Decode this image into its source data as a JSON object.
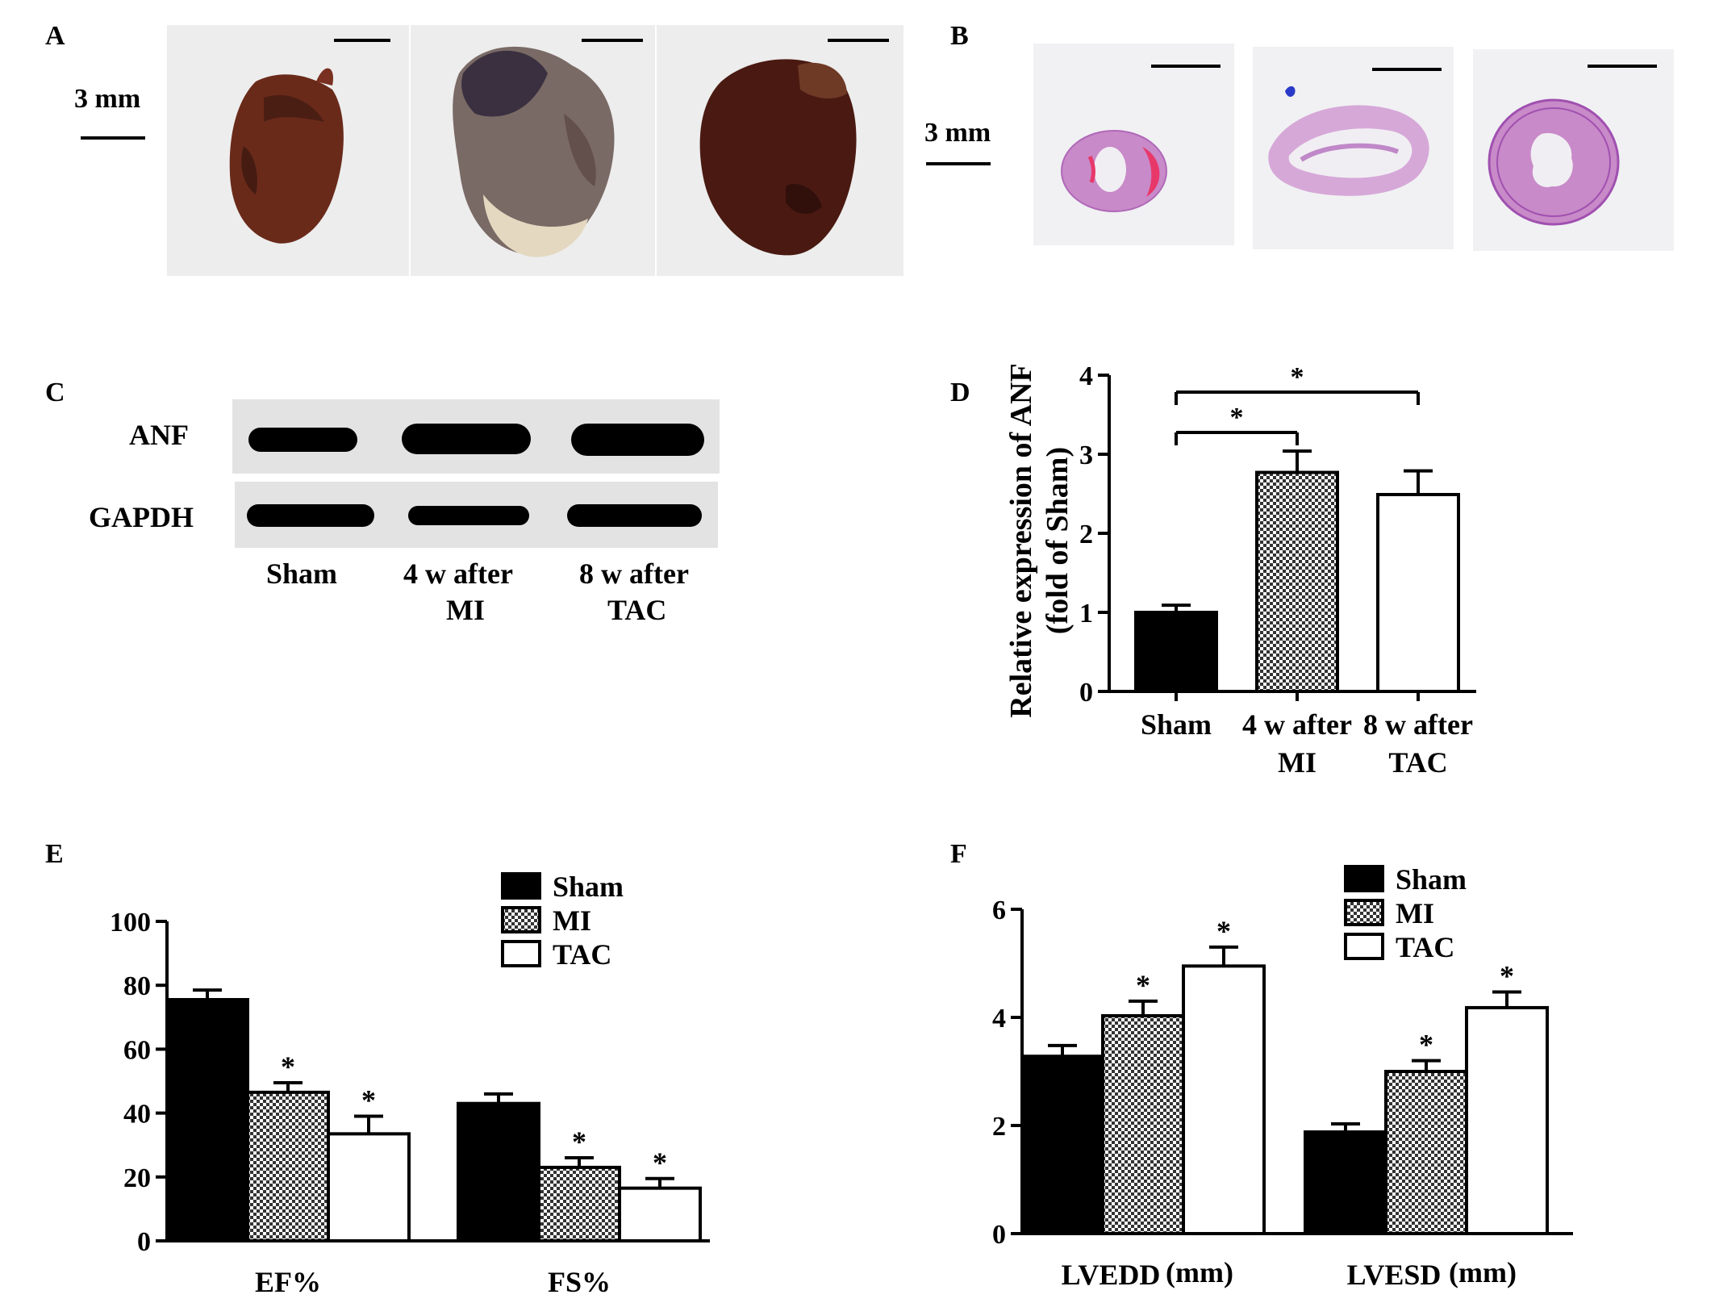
{
  "panel_a": {
    "label": "A",
    "scale_label": "3 mm",
    "colors": {
      "background": "#eeeeee",
      "heart_sham": "#6a2a1a",
      "heart_mi": "#7a6a66",
      "heart_tac": "#4a1a12"
    }
  },
  "panel_b": {
    "label": "B",
    "scale_label": "3 mm",
    "colors": {
      "background": "#f1f1f3",
      "tissue": "#c88ac8",
      "tissue_edge": "#b068b8",
      "infarct": "#e8386a"
    }
  },
  "panel_c": {
    "label": "C",
    "bands": [
      {
        "label": "ANF",
        "intensity": [
          0.85,
          1.0,
          1.0
        ]
      },
      {
        "label": "GAPDH",
        "intensity": [
          0.95,
          0.9,
          0.95
        ]
      }
    ],
    "lanes": [
      {
        "line1": "Sham",
        "line2": ""
      },
      {
        "line1": "4 w after",
        "line2": "MI"
      },
      {
        "line1": "8 w after",
        "line2": "TAC"
      }
    ]
  },
  "panel_d": {
    "label": "D",
    "ylabel_line1": "Relative expression of ANF",
    "ylabel_line2": "(fold of Sham)",
    "significance": [
      "*",
      "*"
    ]
  },
  "panel_e": {
    "label": "E"
  },
  "panel_f": {
    "label": "F"
  },
  "chart_data": [
    {
      "id": "D",
      "type": "bar",
      "categories": [
        {
          "line1": "Sham",
          "line2": ""
        },
        {
          "line1": "4 w after",
          "line2": "MI"
        },
        {
          "line1": "8 w after",
          "line2": "TAC"
        }
      ],
      "values": [
        1.0,
        2.77,
        2.49
      ],
      "errors": [
        0.09,
        0.27,
        0.3
      ],
      "fills": [
        "black",
        "checker",
        "white"
      ],
      "ylim": [
        0,
        4
      ],
      "yticks": [
        "0",
        "1",
        "2",
        "3",
        "4"
      ],
      "xlabel": "",
      "ylabel": "Relative expression of ANF (fold of Sham)",
      "significance_brackets": [
        {
          "from": 0,
          "to": 1,
          "label": "*"
        },
        {
          "from": 0,
          "to": 2,
          "label": "*"
        }
      ]
    },
    {
      "id": "E",
      "type": "bar",
      "categories": [
        "EF%",
        "FS%"
      ],
      "series": [
        {
          "name": "Sham",
          "fill": "black",
          "values": [
            75.5,
            43
          ],
          "errors": [
            3,
            3
          ],
          "stars": [
            "",
            ""
          ]
        },
        {
          "name": "MI",
          "fill": "checker",
          "values": [
            46.5,
            23
          ],
          "errors": [
            3,
            3
          ],
          "stars": [
            "*",
            "*"
          ]
        },
        {
          "name": "TAC",
          "fill": "white",
          "values": [
            33.5,
            16.5
          ],
          "errors": [
            5.5,
            3
          ],
          "stars": [
            "*",
            "*"
          ]
        }
      ],
      "ylim": [
        0,
        100
      ],
      "yticks": [
        "0",
        "20",
        "40",
        "60",
        "80",
        "100"
      ],
      "legend": "top-right"
    },
    {
      "id": "F",
      "type": "bar",
      "categories": [
        {
          "name": "LVEDD",
          "unit": "(mm)"
        },
        {
          "name": "LVESD",
          "unit": "(mm)"
        }
      ],
      "series": [
        {
          "name": "Sham",
          "fill": "black",
          "values": [
            3.28,
            1.88
          ],
          "errors": [
            0.2,
            0.15
          ],
          "stars": [
            "",
            ""
          ]
        },
        {
          "name": "MI",
          "fill": "checker",
          "values": [
            4.03,
            3.0
          ],
          "errors": [
            0.27,
            0.2
          ],
          "stars": [
            "*",
            "*"
          ]
        },
        {
          "name": "TAC",
          "fill": "white",
          "values": [
            4.95,
            4.18
          ],
          "errors": [
            0.35,
            0.29
          ],
          "stars": [
            "*",
            "*"
          ]
        }
      ],
      "ylim": [
        0,
        6
      ],
      "yticks": [
        "0",
        "2",
        "4",
        "6"
      ],
      "legend": "top-right"
    }
  ]
}
